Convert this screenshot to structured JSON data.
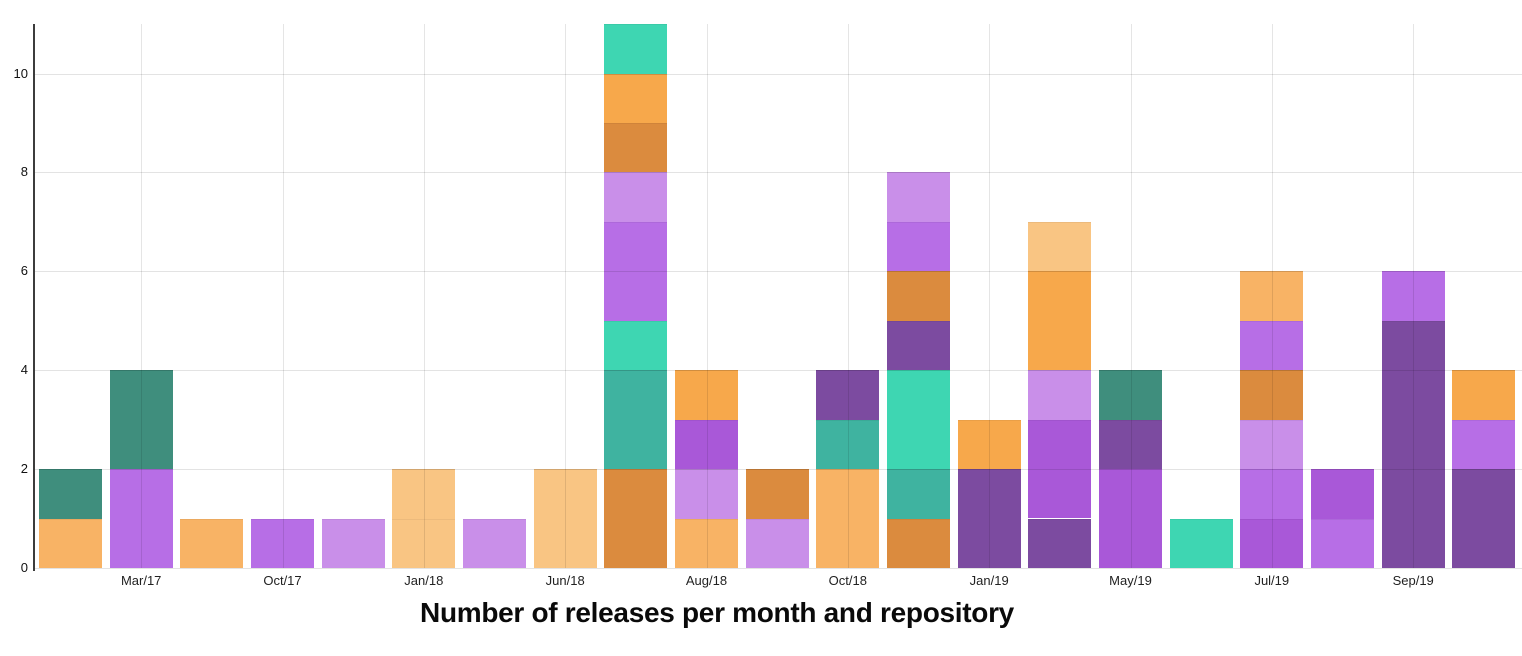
{
  "title": "Number of releases per month and repository",
  "chart_data": {
    "type": "bar",
    "stacked": true,
    "title": "Number of releases per month and repository",
    "xlabel": "",
    "ylabel": "",
    "ylim": [
      0,
      11
    ],
    "yticks": [
      0,
      2,
      4,
      6,
      8,
      10
    ],
    "grid": true,
    "legend": "none",
    "palette": {
      "orange": "#F7A84B",
      "midOrange": "#F8B365",
      "paleOrange": "#F9C583",
      "burntOrange": "#DB8B3E",
      "mint": "#3ED6B2",
      "teal": "#3FB3A0",
      "darkGreen": "#3F8E7D",
      "darkPurple": "#7C4BA0",
      "purple": "#A958D8",
      "violet": "#B76EE6",
      "lavender": "#C98FE9"
    },
    "bars": [
      {
        "tick": "",
        "total": 2,
        "segments": [
          [
            "midOrange",
            1
          ],
          [
            "darkGreen",
            1
          ]
        ]
      },
      {
        "tick": "Mar/17",
        "total": 4,
        "segments": [
          [
            "violet",
            2
          ],
          [
            "darkGreen",
            2
          ]
        ]
      },
      {
        "tick": "",
        "total": 1,
        "segments": [
          [
            "midOrange",
            1
          ]
        ]
      },
      {
        "tick": "Oct/17",
        "total": 1,
        "segments": [
          [
            "violet",
            1
          ]
        ]
      },
      {
        "tick": "",
        "total": 1,
        "segments": [
          [
            "lavender",
            1
          ]
        ]
      },
      {
        "tick": "Jan/18",
        "total": 2,
        "segments": [
          [
            "paleOrange",
            1
          ],
          [
            "paleOrange",
            1
          ]
        ]
      },
      {
        "tick": "",
        "total": 1,
        "segments": [
          [
            "lavender",
            1
          ]
        ]
      },
      {
        "tick": "Jun/18",
        "total": 2,
        "segments": [
          [
            "paleOrange",
            2
          ]
        ]
      },
      {
        "tick": "",
        "total": 11,
        "segments": [
          [
            "burntOrange",
            2
          ],
          [
            "teal",
            2
          ],
          [
            "mint",
            1
          ],
          [
            "violet",
            2
          ],
          [
            "lavender",
            1
          ],
          [
            "burntOrange",
            1
          ],
          [
            "orange",
            1
          ],
          [
            "mint",
            1
          ]
        ]
      },
      {
        "tick": "Aug/18",
        "total": 4,
        "segments": [
          [
            "midOrange",
            1
          ],
          [
            "lavender",
            1
          ],
          [
            "purple",
            1
          ],
          [
            "orange",
            1
          ]
        ]
      },
      {
        "tick": "",
        "total": 2,
        "segments": [
          [
            "lavender",
            1
          ],
          [
            "burntOrange",
            1
          ]
        ]
      },
      {
        "tick": "Oct/18",
        "total": 4,
        "segments": [
          [
            "midOrange",
            2
          ],
          [
            "teal",
            1
          ],
          [
            "darkPurple",
            1
          ]
        ]
      },
      {
        "tick": "",
        "total": 8,
        "segments": [
          [
            "burntOrange",
            1
          ],
          [
            "teal",
            1
          ],
          [
            "mint",
            2
          ],
          [
            "darkPurple",
            1
          ],
          [
            "burntOrange",
            1
          ],
          [
            "violet",
            1
          ],
          [
            "lavender",
            1
          ]
        ]
      },
      {
        "tick": "Jan/19",
        "total": 3,
        "segments": [
          [
            "darkPurple",
            2
          ],
          [
            "orange",
            1
          ]
        ]
      },
      {
        "tick": "",
        "total": 7,
        "segments": [
          [
            "darkPurple",
            1
          ],
          [
            "purple",
            2
          ],
          [
            "lavender",
            1
          ],
          [
            "orange",
            2
          ],
          [
            "paleOrange",
            1
          ]
        ]
      },
      {
        "tick": "May/19",
        "total": 4,
        "segments": [
          [
            "purple",
            2
          ],
          [
            "darkPurple",
            1
          ],
          [
            "darkGreen",
            1
          ]
        ]
      },
      {
        "tick": "",
        "total": 1,
        "segments": [
          [
            "mint",
            1
          ]
        ]
      },
      {
        "tick": "Jul/19",
        "total": 6,
        "segments": [
          [
            "purple",
            1
          ],
          [
            "violet",
            1
          ],
          [
            "lavender",
            1
          ],
          [
            "burntOrange",
            1
          ],
          [
            "violet",
            1
          ],
          [
            "midOrange",
            1
          ]
        ]
      },
      {
        "tick": "",
        "total": 2,
        "segments": [
          [
            "violet",
            1
          ],
          [
            "purple",
            1
          ]
        ]
      },
      {
        "tick": "Sep/19",
        "total": 6,
        "segments": [
          [
            "darkPurple",
            5
          ],
          [
            "violet",
            1
          ]
        ]
      },
      {
        "tick": "",
        "total": 4,
        "segments": [
          [
            "darkPurple",
            2
          ],
          [
            "violet",
            1
          ],
          [
            "orange",
            1
          ]
        ]
      }
    ]
  }
}
